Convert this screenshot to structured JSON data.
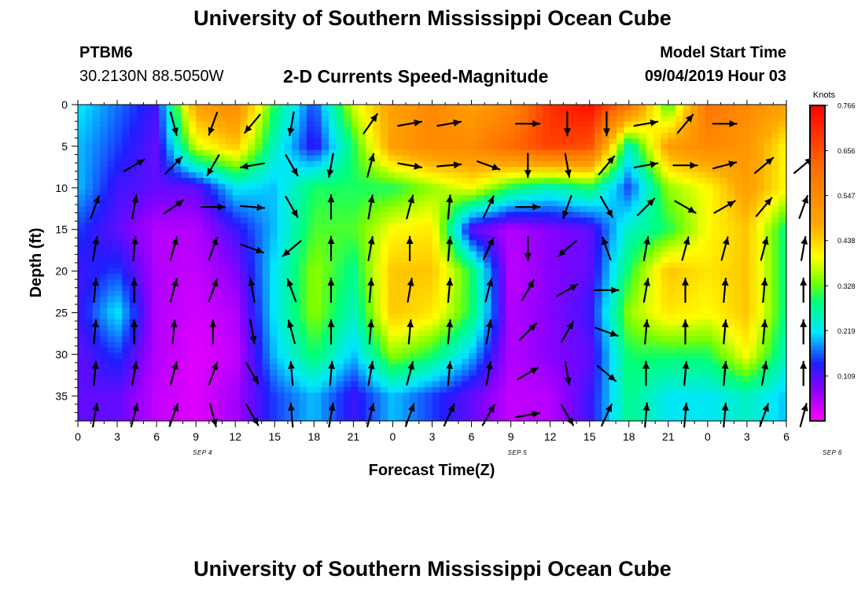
{
  "titles": {
    "top": "University of Southern Mississippi Ocean Cube",
    "bottom": "University of Southern Mississippi Ocean Cube"
  },
  "header": {
    "station_id": "PTBM6",
    "coordinates": "30.2130N 88.5050W",
    "chart_title": "2-D Currents Speed-Magnitude",
    "model_label": "Model Start Time",
    "model_start": "09/04/2019 Hour 03"
  },
  "chart_data": {
    "type": "heatmap",
    "title": "2-D Currents Speed-Magnitude",
    "xlabel": "Forecast Time(Z)",
    "ylabel": "Depth (ft)",
    "x_tick_labels": [
      "0",
      "3",
      "6",
      "9",
      "12",
      "15",
      "18",
      "21",
      "0",
      "3",
      "6",
      "9",
      "12",
      "15",
      "18",
      "21",
      "0",
      "3",
      "6"
    ],
    "date_labels": [
      {
        "label": "SEP 4",
        "hour": 9.5
      },
      {
        "label": "SEP 5",
        "hour": 33.5
      },
      {
        "label": "SEP 6",
        "hour": 57.5
      }
    ],
    "xlim": [
      0,
      54
    ],
    "y_ticks": [
      0,
      5,
      10,
      15,
      20,
      25,
      30,
      35
    ],
    "ylim": [
      0,
      38
    ],
    "y_inverted": true,
    "colorbar": {
      "title": "Knots",
      "ticks": [
        "0.766",
        "0.656",
        "0.547",
        "0.438",
        "0.328",
        "0.219",
        "0.109"
      ],
      "range": [
        0,
        0.766
      ]
    },
    "depths": [
      0,
      5,
      10,
      15,
      20,
      25,
      30,
      35
    ],
    "speed_rows": [
      [
        0.22,
        0.17,
        0.12,
        0.5,
        0.55,
        0.3,
        0.15,
        0.38,
        0.5,
        0.55,
        0.5,
        0.55,
        0.7,
        0.75,
        0.6,
        0.3,
        0.6,
        0.55,
        0.5
      ],
      [
        0.2,
        0.15,
        0.1,
        0.38,
        0.45,
        0.25,
        0.12,
        0.3,
        0.5,
        0.55,
        0.55,
        0.62,
        0.68,
        0.66,
        0.25,
        0.5,
        0.55,
        0.52,
        0.4
      ],
      [
        0.2,
        0.12,
        0.1,
        0.1,
        0.22,
        0.2,
        0.3,
        0.3,
        0.3,
        0.35,
        0.4,
        0.3,
        0.25,
        0.3,
        0.15,
        0.35,
        0.4,
        0.5,
        0.4
      ],
      [
        0.15,
        0.1,
        0.05,
        0.05,
        0.12,
        0.2,
        0.32,
        0.32,
        0.4,
        0.42,
        0.1,
        0.05,
        0.08,
        0.1,
        0.25,
        0.3,
        0.4,
        0.45,
        0.28
      ],
      [
        0.12,
        0.15,
        0.05,
        0.04,
        0.08,
        0.22,
        0.35,
        0.28,
        0.45,
        0.45,
        0.3,
        0.04,
        0.08,
        0.1,
        0.3,
        0.45,
        0.42,
        0.45,
        0.28
      ],
      [
        0.12,
        0.22,
        0.05,
        0.03,
        0.05,
        0.22,
        0.35,
        0.25,
        0.45,
        0.42,
        0.3,
        0.05,
        0.08,
        0.12,
        0.35,
        0.42,
        0.4,
        0.45,
        0.28
      ],
      [
        0.1,
        0.15,
        0.05,
        0.02,
        0.04,
        0.2,
        0.3,
        0.2,
        0.35,
        0.3,
        0.2,
        0.05,
        0.08,
        0.1,
        0.3,
        0.3,
        0.3,
        0.4,
        0.25
      ],
      [
        0.1,
        0.1,
        0.04,
        0.02,
        0.06,
        0.15,
        0.2,
        0.12,
        0.2,
        0.15,
        0.1,
        0.04,
        0.05,
        0.12,
        0.28,
        0.22,
        0.22,
        0.25,
        0.2
      ]
    ],
    "direction_rows": [
      [
        null,
        null,
        165,
        200,
        220,
        190,
        null,
        35,
        80,
        80,
        null,
        90,
        180,
        180,
        80,
        40,
        90,
        null,
        null
      ],
      [
        null,
        60,
        45,
        210,
        260,
        150,
        190,
        15,
        100,
        85,
        110,
        180,
        170,
        40,
        80,
        90,
        75,
        50,
        50
      ],
      [
        20,
        10,
        55,
        90,
        95,
        150,
        0,
        10,
        15,
        5,
        25,
        90,
        200,
        150,
        45,
        120,
        60,
        40,
        20
      ],
      [
        10,
        5,
        15,
        20,
        110,
        230,
        0,
        10,
        0,
        5,
        25,
        180,
        230,
        340,
        10,
        15,
        15,
        15,
        10
      ],
      [
        5,
        0,
        15,
        20,
        350,
        340,
        0,
        5,
        10,
        5,
        15,
        30,
        60,
        90,
        10,
        0,
        5,
        5,
        0
      ],
      [
        5,
        0,
        5,
        0,
        170,
        345,
        0,
        5,
        5,
        5,
        10,
        45,
        30,
        110,
        5,
        0,
        5,
        5,
        0
      ],
      [
        5,
        10,
        15,
        20,
        150,
        355,
        5,
        10,
        15,
        5,
        10,
        60,
        170,
        130,
        0,
        5,
        5,
        10,
        0
      ],
      [
        10,
        15,
        20,
        165,
        150,
        355,
        10,
        15,
        20,
        25,
        30,
        80,
        150,
        25,
        5,
        5,
        5,
        20,
        15
      ]
    ]
  }
}
